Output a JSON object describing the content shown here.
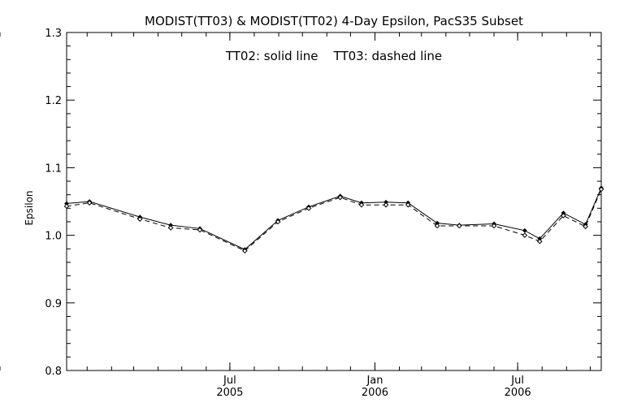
{
  "chart_data": {
    "type": "line",
    "title": "MODIST(TT03) & MODIST(TT02) 4-Day Epsilon, PacS35 Subset",
    "annotation": "TT02: solid line    TT03: dashed line",
    "xlabel": "",
    "ylabel": "Epsilon",
    "ylim": [
      0.8,
      1.3
    ],
    "xlim": [
      "2004-12-06",
      "2006-10-15"
    ],
    "grid": false,
    "y_ticks": [
      "0.8",
      "0.9",
      "1.0",
      "1.1",
      "1.2",
      "1.3"
    ],
    "x_ticks": [
      {
        "date": "2005-07-01",
        "month": "Jul",
        "year": "2005"
      },
      {
        "date": "2006-01-01",
        "month": "Jan",
        "year": "2006"
      },
      {
        "date": "2006-07-01",
        "month": "Jul",
        "year": "2006"
      }
    ],
    "series": [
      {
        "name": "TT02",
        "style": "solid",
        "points": [
          [
            "2004-12-06",
            1.047
          ],
          [
            "2005-01-04",
            1.05
          ],
          [
            "2005-03-09",
            1.027
          ],
          [
            "2005-04-17",
            1.015
          ],
          [
            "2005-05-24",
            1.01
          ],
          [
            "2005-07-20",
            0.979
          ],
          [
            "2005-08-31",
            1.022
          ],
          [
            "2005-10-09",
            1.042
          ],
          [
            "2005-11-18",
            1.058
          ],
          [
            "2005-12-15",
            1.048
          ],
          [
            "2006-01-15",
            1.049
          ],
          [
            "2006-02-12",
            1.048
          ],
          [
            "2006-03-21",
            1.018
          ],
          [
            "2006-04-18",
            1.015
          ],
          [
            "2006-06-01",
            1.017
          ],
          [
            "2006-07-10",
            1.007
          ],
          [
            "2006-07-29",
            0.995
          ],
          [
            "2006-08-28",
            1.033
          ],
          [
            "2006-09-25",
            1.016
          ],
          [
            "2006-10-15",
            1.07
          ]
        ]
      },
      {
        "name": "TT03",
        "style": "dashed",
        "points": [
          [
            "2004-12-06",
            1.043
          ],
          [
            "2005-01-04",
            1.048
          ],
          [
            "2005-03-09",
            1.024
          ],
          [
            "2005-04-17",
            1.011
          ],
          [
            "2005-05-24",
            1.008
          ],
          [
            "2005-07-20",
            0.977
          ],
          [
            "2005-08-31",
            1.02
          ],
          [
            "2005-10-09",
            1.04
          ],
          [
            "2005-11-18",
            1.056
          ],
          [
            "2005-12-15",
            1.045
          ],
          [
            "2006-01-15",
            1.045
          ],
          [
            "2006-02-12",
            1.045
          ],
          [
            "2006-03-21",
            1.014
          ],
          [
            "2006-04-18",
            1.014
          ],
          [
            "2006-06-01",
            1.014
          ],
          [
            "2006-07-10",
            1.0
          ],
          [
            "2006-07-29",
            0.991
          ],
          [
            "2006-08-28",
            1.029
          ],
          [
            "2006-09-25",
            1.013
          ],
          [
            "2006-10-15",
            1.068
          ]
        ]
      }
    ]
  }
}
